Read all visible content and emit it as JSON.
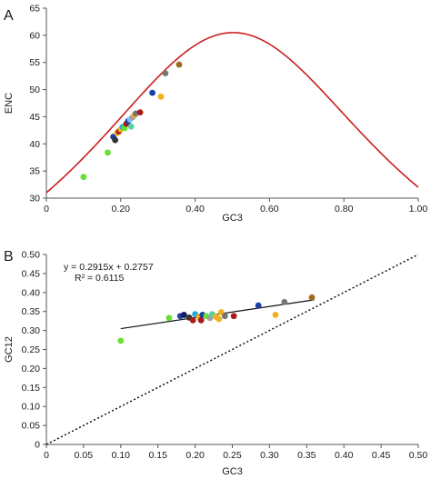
{
  "chart_data": [
    {
      "panel": "A",
      "type": "scatter",
      "xlabel": "GC3",
      "ylabel": "ENC",
      "xlim": [
        0,
        1.0
      ],
      "ylim": [
        30,
        65
      ],
      "xticks": [
        0,
        0.2,
        0.4,
        0.6,
        0.8,
        1.0
      ],
      "xtick_labels": [
        "0",
        "0.20",
        "0.40",
        "0.60",
        "0.80",
        "1.00"
      ],
      "yticks": [
        30,
        35,
        40,
        45,
        50,
        55,
        60,
        65
      ],
      "ytick_labels": [
        "30",
        "35",
        "40",
        "45",
        "50",
        "55",
        "60",
        "65"
      ],
      "curve": {
        "name": "expected ENC",
        "formula": "2 + x + 29 / (x^2 + (1 - x)^2)",
        "color": "#cc1f1f"
      },
      "points": [
        {
          "x": 0.1,
          "y": 33.9,
          "color": "#66e033"
        },
        {
          "x": 0.165,
          "y": 38.4,
          "color": "#66e033"
        },
        {
          "x": 0.18,
          "y": 41.3,
          "color": "#1c3fa8"
        },
        {
          "x": 0.185,
          "y": 40.7,
          "color": "#333333"
        },
        {
          "x": 0.19,
          "y": 42.0,
          "color": "#f2b01e"
        },
        {
          "x": 0.195,
          "y": 42.3,
          "color": "#aa1a1a"
        },
        {
          "x": 0.2,
          "y": 42.7,
          "color": "#f2b01e"
        },
        {
          "x": 0.205,
          "y": 43.1,
          "color": "#1fa8e0"
        },
        {
          "x": 0.21,
          "y": 42.9,
          "color": "#66e033"
        },
        {
          "x": 0.215,
          "y": 43.7,
          "color": "#aa1a1a"
        },
        {
          "x": 0.22,
          "y": 44.2,
          "color": "#1c3fa8"
        },
        {
          "x": 0.225,
          "y": 44.5,
          "color": "#7fbfff"
        },
        {
          "x": 0.228,
          "y": 43.2,
          "color": "#5ad0a0"
        },
        {
          "x": 0.232,
          "y": 44.9,
          "color": "#a0a0a0"
        },
        {
          "x": 0.237,
          "y": 45.3,
          "color": "#f2b01e"
        },
        {
          "x": 0.24,
          "y": 45.6,
          "color": "#777777"
        },
        {
          "x": 0.252,
          "y": 45.8,
          "color": "#aa1a1a"
        },
        {
          "x": 0.285,
          "y": 49.4,
          "color": "#1c3fa8"
        },
        {
          "x": 0.308,
          "y": 48.7,
          "color": "#f2b01e"
        },
        {
          "x": 0.32,
          "y": 53.0,
          "color": "#777777"
        },
        {
          "x": 0.357,
          "y": 54.6,
          "color": "#a06a1a"
        }
      ]
    },
    {
      "panel": "B",
      "type": "scatter",
      "xlabel": "GC3",
      "ylabel": "GC12",
      "xlim": [
        0,
        0.5
      ],
      "ylim": [
        0,
        0.5
      ],
      "xticks": [
        0,
        0.05,
        0.1,
        0.15,
        0.2,
        0.25,
        0.3,
        0.35,
        0.4,
        0.45,
        0.5
      ],
      "xtick_labels": [
        "0",
        "0.05",
        "0.10",
        "0.15",
        "0.20",
        "0.25",
        "0.30",
        "0.35",
        "0.40",
        "0.45",
        "0.50"
      ],
      "yticks": [
        0,
        0.05,
        0.1,
        0.15,
        0.2,
        0.25,
        0.3,
        0.35,
        0.4,
        0.45,
        0.5
      ],
      "ytick_labels": [
        "0",
        "0.05",
        "0.10",
        "0.15",
        "0.20",
        "0.25",
        "0.30",
        "0.35",
        "0.40",
        "0.45",
        "0.50"
      ],
      "annotations": [
        "y = 0.2915x + 0.2757",
        "R² = 0.6115"
      ],
      "regression": {
        "slope": 0.2915,
        "intercept": 0.2757,
        "x_range": [
          0.1,
          0.36
        ]
      },
      "diagonal": {
        "x": [
          0,
          0.5
        ],
        "y": [
          0,
          0.5
        ],
        "style": "dotted"
      },
      "points": [
        {
          "x": 0.1,
          "y": 0.273,
          "color": "#66e033"
        },
        {
          "x": 0.165,
          "y": 0.333,
          "color": "#66e033"
        },
        {
          "x": 0.18,
          "y": 0.338,
          "color": "#1c3fa8"
        },
        {
          "x": 0.185,
          "y": 0.341,
          "color": "#1a1a5a"
        },
        {
          "x": 0.192,
          "y": 0.334,
          "color": "#333333"
        },
        {
          "x": 0.197,
          "y": 0.327,
          "color": "#aa1a1a"
        },
        {
          "x": 0.2,
          "y": 0.343,
          "color": "#1fa8e0"
        },
        {
          "x": 0.205,
          "y": 0.336,
          "color": "#f2b01e"
        },
        {
          "x": 0.208,
          "y": 0.327,
          "color": "#aa1a1a"
        },
        {
          "x": 0.21,
          "y": 0.341,
          "color": "#1c3fa8"
        },
        {
          "x": 0.215,
          "y": 0.338,
          "color": "#66e033"
        },
        {
          "x": 0.22,
          "y": 0.333,
          "color": "#a0a0a0"
        },
        {
          "x": 0.223,
          "y": 0.343,
          "color": "#5ad0a0"
        },
        {
          "x": 0.228,
          "y": 0.336,
          "color": "#f2b01e"
        },
        {
          "x": 0.232,
          "y": 0.33,
          "color": "#f2b01e"
        },
        {
          "x": 0.235,
          "y": 0.348,
          "color": "#f2b01e"
        },
        {
          "x": 0.24,
          "y": 0.338,
          "color": "#777777"
        },
        {
          "x": 0.252,
          "y": 0.338,
          "color": "#aa1a1a"
        },
        {
          "x": 0.285,
          "y": 0.366,
          "color": "#1c3fa8"
        },
        {
          "x": 0.308,
          "y": 0.341,
          "color": "#f2b01e"
        },
        {
          "x": 0.32,
          "y": 0.375,
          "color": "#777777"
        },
        {
          "x": 0.357,
          "y": 0.387,
          "color": "#a06a1a"
        }
      ]
    }
  ],
  "panel_labels": [
    "A",
    "B"
  ]
}
